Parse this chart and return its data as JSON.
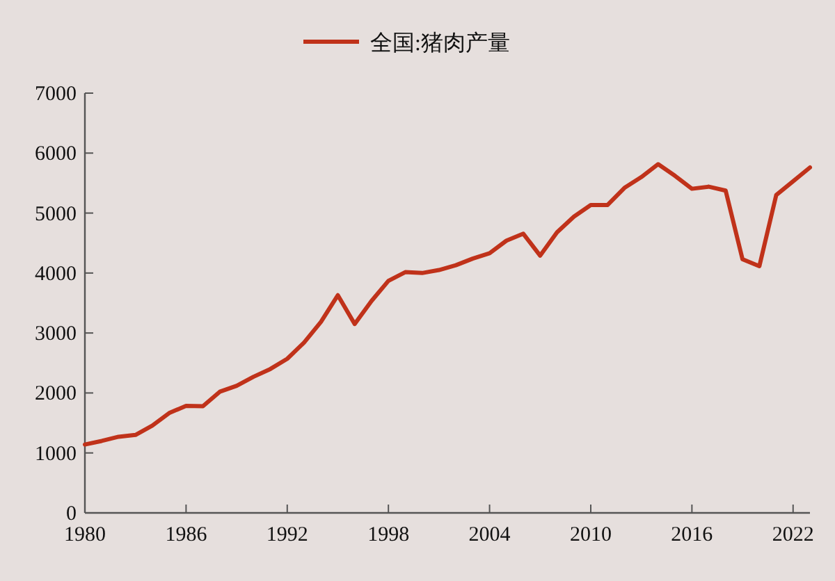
{
  "chart_data": {
    "type": "line",
    "x": [
      1980,
      1981,
      1982,
      1983,
      1984,
      1985,
      1986,
      1987,
      1988,
      1989,
      1990,
      1991,
      1992,
      1993,
      1994,
      1995,
      1996,
      1997,
      1998,
      1999,
      2000,
      2001,
      2002,
      2003,
      2004,
      2005,
      2006,
      2007,
      2008,
      2009,
      2010,
      2011,
      2012,
      2013,
      2014,
      2015,
      2016,
      2017,
      2018,
      2019,
      2020,
      2021,
      2022,
      2023
    ],
    "series": [
      {
        "name": "全国:猪肉产量",
        "color": "#c0321a",
        "values": [
          1140,
          1200,
          1270,
          1300,
          1455,
          1665,
          1785,
          1780,
          2020,
          2120,
          2270,
          2400,
          2570,
          2840,
          3185,
          3630,
          3150,
          3535,
          3870,
          4015,
          4000,
          4050,
          4130,
          4240,
          4330,
          4540,
          4655,
          4290,
          4680,
          4940,
          5135,
          5135,
          5420,
          5600,
          5815,
          5620,
          5405,
          5440,
          5375,
          4230,
          4115,
          5300,
          5530,
          5760
        ]
      }
    ],
    "xlim": [
      1980,
      2023
    ],
    "xticks": [
      1980,
      1986,
      1992,
      1998,
      2004,
      2010,
      2016,
      2022
    ],
    "ylim": [
      0,
      7000
    ],
    "yticks": [
      0,
      1000,
      2000,
      3000,
      4000,
      5000,
      6000,
      7000
    ],
    "legend": "top",
    "grid": false,
    "marker": "none",
    "line_style": "solid"
  }
}
